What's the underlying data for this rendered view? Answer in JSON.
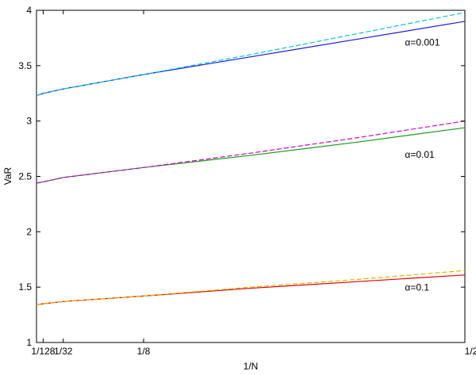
{
  "chart_data": {
    "type": "line",
    "title": "",
    "xlabel": "1/N",
    "ylabel": "VaR",
    "xlim": [
      0,
      0.5
    ],
    "ylim": [
      1,
      4
    ],
    "grid": false,
    "x_ticks": [
      {
        "value": 0.0078125,
        "label": "1/128"
      },
      {
        "value": 0.03125,
        "label": "1/32"
      },
      {
        "value": 0.125,
        "label": "1/8"
      },
      {
        "value": 0.5,
        "label": "1/2"
      }
    ],
    "y_ticks": [
      {
        "value": 1,
        "label": "1"
      },
      {
        "value": 1.5,
        "label": "1.5"
      },
      {
        "value": 2,
        "label": "2"
      },
      {
        "value": 2.5,
        "label": "2.5"
      },
      {
        "value": 3,
        "label": "3"
      },
      {
        "value": 3.5,
        "label": "3.5"
      },
      {
        "value": 4,
        "label": "4"
      }
    ],
    "series": [
      {
        "color": "#1a1ad6",
        "dash": false,
        "x": [
          0,
          0.0078125,
          0.03125,
          0.125,
          0.25,
          0.375,
          0.5
        ],
        "y": [
          3.23,
          3.25,
          3.29,
          3.42,
          3.58,
          3.74,
          3.9
        ]
      },
      {
        "color": "#00c8c8",
        "dash": true,
        "x": [
          0,
          0.0078125,
          0.03125,
          0.125,
          0.25,
          0.375,
          0.5
        ],
        "y": [
          3.23,
          3.25,
          3.29,
          3.42,
          3.6,
          3.79,
          3.98
        ]
      },
      {
        "color": "#1a9a1a",
        "dash": false,
        "x": [
          0,
          0.0078125,
          0.03125,
          0.125,
          0.25,
          0.375,
          0.5
        ],
        "y": [
          2.44,
          2.45,
          2.49,
          2.58,
          2.69,
          2.81,
          2.94
        ]
      },
      {
        "color": "#d000d0",
        "dash": true,
        "x": [
          0,
          0.0078125,
          0.03125,
          0.125,
          0.25,
          0.375,
          0.5
        ],
        "y": [
          2.44,
          2.45,
          2.49,
          2.58,
          2.71,
          2.85,
          3.0
        ]
      },
      {
        "color": "#e00000",
        "dash": false,
        "x": [
          0,
          0.0078125,
          0.03125,
          0.125,
          0.25,
          0.375,
          0.5
        ],
        "y": [
          1.34,
          1.35,
          1.37,
          1.42,
          1.49,
          1.55,
          1.61
        ]
      },
      {
        "color": "#d8b800",
        "dash": true,
        "x": [
          0,
          0.0078125,
          0.03125,
          0.125,
          0.25,
          0.375,
          0.5
        ],
        "y": [
          1.34,
          1.35,
          1.37,
          1.42,
          1.5,
          1.57,
          1.65
        ]
      }
    ],
    "annotations": [
      {
        "text": "α=0.001",
        "x": 0.43,
        "y": 3.68
      },
      {
        "text": "α=0.01",
        "x": 0.43,
        "y": 2.67
      },
      {
        "text": "α=0.1",
        "x": 0.43,
        "y": 1.47
      }
    ]
  }
}
